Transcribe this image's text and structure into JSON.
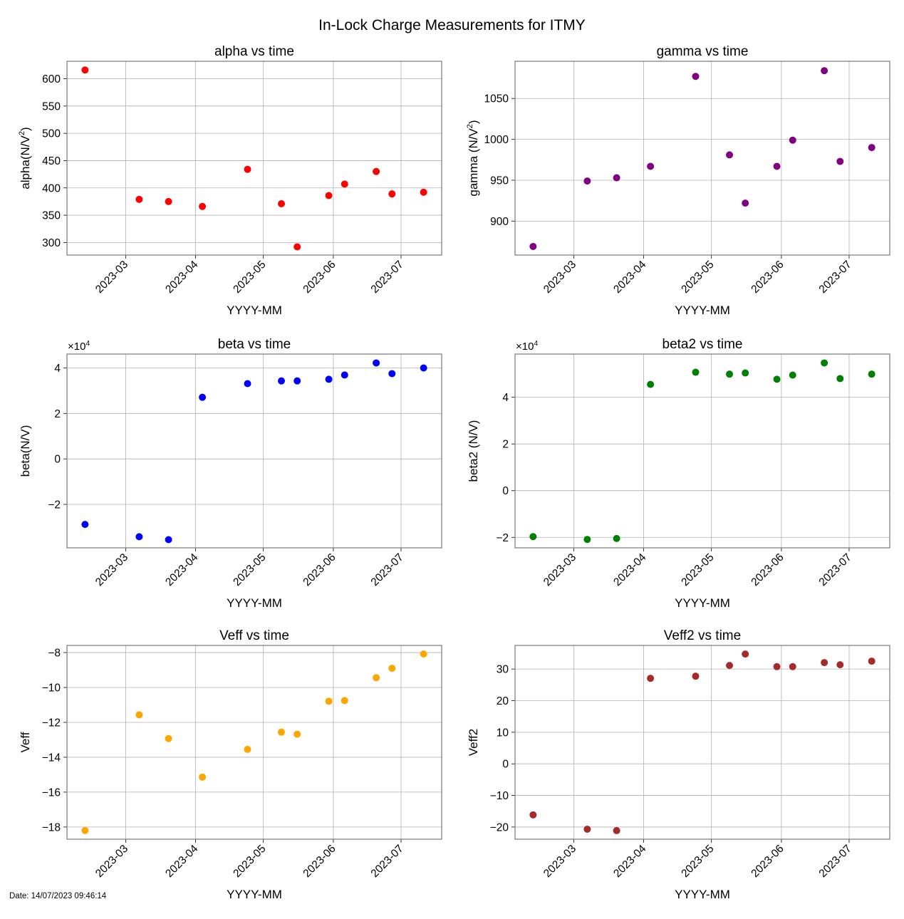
{
  "figure": {
    "title": "In-Lock Charge Measurements for ITMY",
    "date_stamp": "Date: 14/07/2023 09:46:14"
  },
  "chart_data": [
    {
      "type": "scatter",
      "title": "alpha vs time",
      "xlabel": "YYYY-MM",
      "ylabel": "alpha(N/V²)",
      "ylabel_base": "alpha(N/V",
      "ylabel_sup": "2",
      "ylabel_tail": ")",
      "color": "#ff0000",
      "x": [
        "2023-02-11",
        "2023-03-07",
        "2023-03-20",
        "2023-04-04",
        "2023-04-24",
        "2023-05-09",
        "2023-05-16",
        "2023-05-30",
        "2023-06-06",
        "2023-06-20",
        "2023-06-27",
        "2023-07-11"
      ],
      "y": [
        616,
        379,
        375,
        366,
        434,
        371,
        292,
        386,
        407,
        430,
        389,
        392
      ],
      "xlim": [
        "2023-02-03",
        "2023-07-19"
      ],
      "ylim": [
        277,
        632
      ],
      "xticks": [
        "2023-03",
        "2023-04",
        "2023-05",
        "2023-06",
        "2023-07"
      ],
      "yticks": [
        300,
        350,
        400,
        450,
        500,
        550,
        600
      ],
      "ytick_labels": [
        "300",
        "350",
        "400",
        "450",
        "500",
        "550",
        "600"
      ],
      "offset_text": "",
      "grid": true
    },
    {
      "type": "scatter",
      "title": "gamma vs time",
      "xlabel": "YYYY-MM",
      "ylabel": "gamma (N/V²)",
      "ylabel_base": "gamma (N/V",
      "ylabel_sup": "2",
      "ylabel_tail": ")",
      "color": "#800080",
      "x": [
        "2023-02-11",
        "2023-03-07",
        "2023-03-20",
        "2023-04-04",
        "2023-04-24",
        "2023-05-09",
        "2023-05-16",
        "2023-05-30",
        "2023-06-06",
        "2023-06-20",
        "2023-06-27",
        "2023-07-11"
      ],
      "y": [
        869,
        949,
        953,
        967,
        1077,
        981,
        922,
        967,
        999,
        1084,
        973,
        990
      ],
      "xlim": [
        "2023-02-03",
        "2023-07-19"
      ],
      "ylim": [
        858.5,
        1095.5
      ],
      "xticks": [
        "2023-03",
        "2023-04",
        "2023-05",
        "2023-06",
        "2023-07"
      ],
      "yticks": [
        900,
        950,
        1000,
        1050
      ],
      "ytick_labels": [
        "900",
        "950",
        "1000",
        "1050"
      ],
      "offset_text": "",
      "grid": true
    },
    {
      "type": "scatter",
      "title": "beta vs time",
      "xlabel": "YYYY-MM",
      "ylabel": "beta(N/V)",
      "ylabel_base": "beta(N/V)",
      "ylabel_sup": "",
      "ylabel_tail": "",
      "color": "#0000ff",
      "x": [
        "2023-02-11",
        "2023-03-07",
        "2023-03-20",
        "2023-04-04",
        "2023-04-24",
        "2023-05-09",
        "2023-05-16",
        "2023-05-30",
        "2023-06-06",
        "2023-06-20",
        "2023-06-27",
        "2023-07-11"
      ],
      "y": [
        -28800,
        -34200,
        -35500,
        27100,
        33100,
        34300,
        34300,
        35000,
        36900,
        42200,
        37500,
        40000
      ],
      "xlim": [
        "2023-02-03",
        "2023-07-19"
      ],
      "ylim": [
        -39100,
        46100
      ],
      "xticks": [
        "2023-03",
        "2023-04",
        "2023-05",
        "2023-06",
        "2023-07"
      ],
      "yticks": [
        -20000,
        0,
        20000,
        40000
      ],
      "ytick_labels": [
        "−2",
        "0",
        "2",
        "4"
      ],
      "offset_text": "×10",
      "offset_exp": "4",
      "grid": true
    },
    {
      "type": "scatter",
      "title": "beta2 vs time",
      "xlabel": "YYYY-MM",
      "ylabel": "beta2 (N/V)",
      "ylabel_base": "beta2 (N/V)",
      "ylabel_sup": "",
      "ylabel_tail": "",
      "color": "#008000",
      "x": [
        "2023-02-11",
        "2023-03-07",
        "2023-03-20",
        "2023-04-04",
        "2023-04-24",
        "2023-05-09",
        "2023-05-16",
        "2023-05-30",
        "2023-06-06",
        "2023-06-20",
        "2023-06-27",
        "2023-07-11"
      ],
      "y": [
        -19700,
        -20900,
        -20500,
        45500,
        50700,
        49900,
        50400,
        47700,
        49500,
        54700,
        48000,
        49900
      ],
      "xlim": [
        "2023-02-03",
        "2023-07-19"
      ],
      "ylim": [
        -24500,
        58500
      ],
      "xticks": [
        "2023-03",
        "2023-04",
        "2023-05",
        "2023-06",
        "2023-07"
      ],
      "yticks": [
        -20000,
        0,
        20000,
        40000
      ],
      "ytick_labels": [
        "−2",
        "0",
        "2",
        "4"
      ],
      "offset_text": "×10",
      "offset_exp": "4",
      "grid": true
    },
    {
      "type": "scatter",
      "title": "Veff vs time",
      "xlabel": "YYYY-MM",
      "ylabel": "Veff",
      "ylabel_base": "Veff",
      "ylabel_sup": "",
      "ylabel_tail": "",
      "color": "#ffa500",
      "x": [
        "2023-02-11",
        "2023-03-07",
        "2023-03-20",
        "2023-04-04",
        "2023-04-24",
        "2023-05-09",
        "2023-05-16",
        "2023-05-30",
        "2023-06-06",
        "2023-06-20",
        "2023-06-27",
        "2023-07-11"
      ],
      "y": [
        -18.2,
        -11.57,
        -12.93,
        -15.14,
        -13.55,
        -12.56,
        -12.68,
        -10.79,
        -10.75,
        -9.44,
        -8.9,
        -8.08
      ],
      "xlim": [
        "2023-02-03",
        "2023-07-19"
      ],
      "ylim": [
        -18.7,
        -7.59
      ],
      "xticks": [
        "2023-03",
        "2023-04",
        "2023-05",
        "2023-06",
        "2023-07"
      ],
      "yticks": [
        -18,
        -16,
        -14,
        -12,
        -10,
        -8
      ],
      "ytick_labels": [
        "−18",
        "−16",
        "−14",
        "−12",
        "−10",
        "−8"
      ],
      "offset_text": "",
      "grid": true
    },
    {
      "type": "scatter",
      "title": "Veff2 vs time",
      "xlabel": "YYYY-MM",
      "ylabel": "Veff2",
      "ylabel_base": "Veff2",
      "ylabel_sup": "",
      "ylabel_tail": "",
      "color": "#a52a2a",
      "x": [
        "2023-02-11",
        "2023-03-07",
        "2023-03-20",
        "2023-04-04",
        "2023-04-24",
        "2023-05-09",
        "2023-05-16",
        "2023-05-30",
        "2023-06-06",
        "2023-06-20",
        "2023-06-27",
        "2023-07-11"
      ],
      "y": [
        -16.15,
        -20.68,
        -21.13,
        27.06,
        27.74,
        31.13,
        34.75,
        30.75,
        30.75,
        32.04,
        31.36,
        32.49
      ],
      "xlim": [
        "2023-02-03",
        "2023-07-19"
      ],
      "ylim": [
        -23.85,
        37.47
      ],
      "xticks": [
        "2023-03",
        "2023-04",
        "2023-05",
        "2023-06",
        "2023-07"
      ],
      "yticks": [
        -20,
        -10,
        0,
        10,
        20,
        30
      ],
      "ytick_labels": [
        "−20",
        "−10",
        "0",
        "10",
        "20",
        "30"
      ],
      "offset_text": "",
      "grid": true
    }
  ]
}
